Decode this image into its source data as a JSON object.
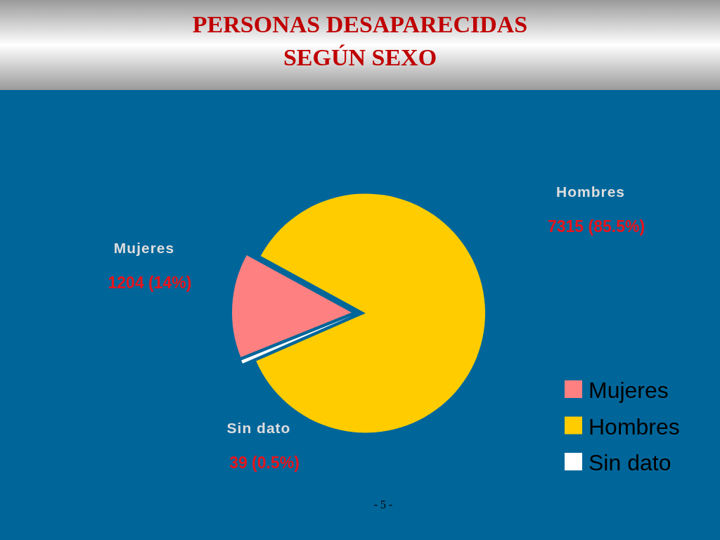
{
  "chart_data": {
    "type": "pie",
    "title": "PERSONAS DESAPARECIDAS\nSEGÚN SEXO",
    "categories": [
      "Mujeres",
      "Hombres",
      "Sin dato"
    ],
    "values": [
      1204,
      7315,
      39
    ],
    "colors": [
      "#ff8080",
      "#ffcc00",
      "#ffffff"
    ],
    "value_labels": [
      "1204 (14%)",
      "7315 (85.5%)",
      "39 (0.5%)"
    ],
    "legend": "bottom right",
    "annotations": [
      "- 5 -"
    ]
  }
}
